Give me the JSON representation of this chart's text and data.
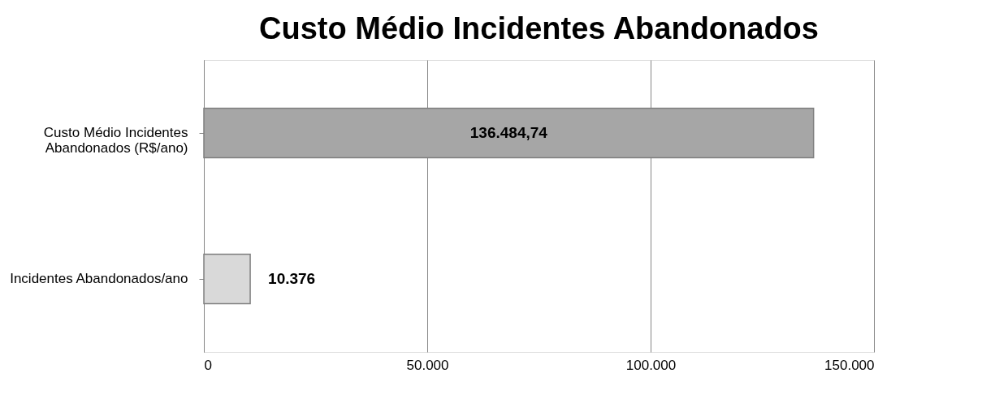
{
  "chart_data": {
    "type": "bar",
    "orientation": "horizontal",
    "title": "Custo Médio Incidentes Abandonados",
    "categories": [
      "Custo Médio Incidentes Abandonados (R$/ano)",
      "Incidentes Abandonados/ano"
    ],
    "values": [
      136484.74,
      10376
    ],
    "value_labels": [
      "136.484,74",
      "10.376"
    ],
    "colors": [
      "#a6a6a6",
      "#d9d9d9"
    ],
    "xlim": [
      0,
      150000
    ],
    "xticks": [
      0,
      {
        "value": 50000,
        "label": "50.000"
      },
      {
        "value": 100000,
        "label": "100.000"
      },
      {
        "value": 150000,
        "label": "150.000"
      }
    ],
    "grid": "x"
  }
}
